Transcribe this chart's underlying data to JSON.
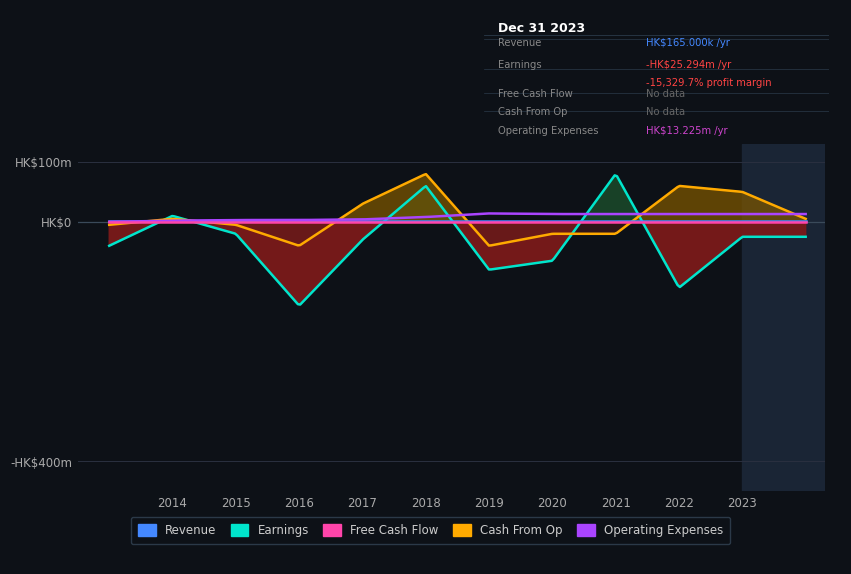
{
  "background_color": "#0d1117",
  "plot_bg_color": "#0d1117",
  "title": "Dec 31 2023",
  "ytick_labels": [
    "HK$100m",
    "HK$0",
    "-HK$400m"
  ],
  "ytick_values": [
    100,
    0,
    -400
  ],
  "ylim": [
    -450,
    130
  ],
  "xlim": [
    2012.5,
    2024.3
  ],
  "xtick_labels": [
    "2014",
    "2015",
    "2016",
    "2017",
    "2018",
    "2019",
    "2020",
    "2021",
    "2022",
    "2023"
  ],
  "xtick_values": [
    2014,
    2015,
    2016,
    2017,
    2018,
    2019,
    2020,
    2021,
    2022,
    2023
  ],
  "colors": {
    "revenue": "#4488ff",
    "earnings": "#00e5cc",
    "free_cash_flow": "#ff44aa",
    "cash_from_op": "#ffaa00",
    "operating_expenses": "#aa44ff",
    "fill_earnings_neg": "#7a1a1a",
    "fill_earnings_pos": "#1a4a2a",
    "fill_cashop_pos": "#7a5500",
    "fill_cashop_neg": "#5a1a1a"
  },
  "legend_items": [
    {
      "label": "Revenue",
      "color": "#4488ff"
    },
    {
      "label": "Earnings",
      "color": "#00e5cc"
    },
    {
      "label": "Free Cash Flow",
      "color": "#ff44aa"
    },
    {
      "label": "Cash From Op",
      "color": "#ffaa00"
    },
    {
      "label": "Operating Expenses",
      "color": "#aa44ff"
    }
  ],
  "grid_color": "#2a3040",
  "text_color": "#aaaaaa",
  "highlight_rect_color": "#1a2535",
  "info_box": {
    "title": "Dec 31 2023",
    "rows": [
      {
        "label": "Revenue",
        "value": "HK$165.000k /yr",
        "value_color": "#4488ff",
        "sub": null
      },
      {
        "label": "Earnings",
        "value": "-HK$25.294m /yr",
        "value_color": "#ff4444",
        "sub": "-15,329.7% profit margin",
        "sub_color": "#ff4444"
      },
      {
        "label": "Free Cash Flow",
        "value": "No data",
        "value_color": "#666666",
        "sub": null
      },
      {
        "label": "Cash From Op",
        "value": "No data",
        "value_color": "#666666",
        "sub": null
      },
      {
        "label": "Operating Expenses",
        "value": "HK$13.225m /yr",
        "value_color": "#cc44cc",
        "sub": null
      }
    ]
  }
}
